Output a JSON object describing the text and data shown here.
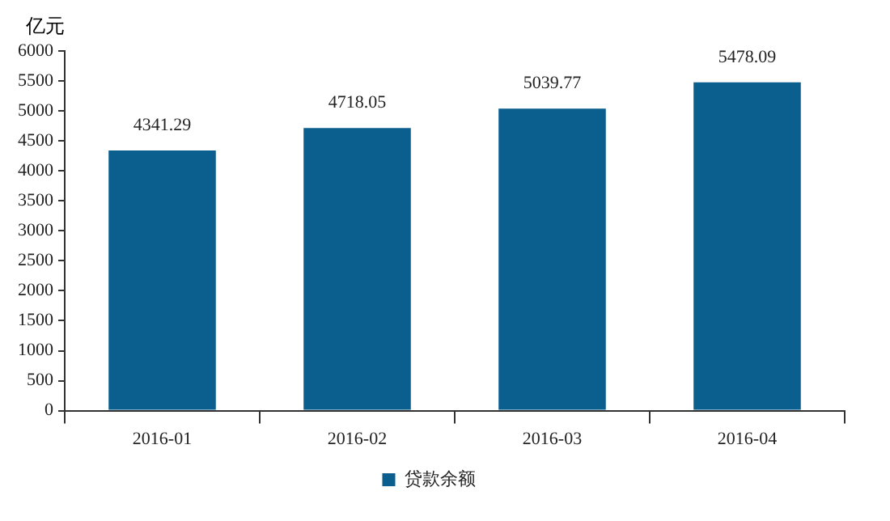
{
  "chart_data": {
    "type": "bar",
    "ylabel": "亿元",
    "categories": [
      "2016-01",
      "2016-02",
      "2016-03",
      "2016-04"
    ],
    "series": [
      {
        "name": "贷款余额",
        "color": "#0b5f8f",
        "values": [
          4341.29,
          4718.05,
          5039.77,
          5478.09
        ]
      }
    ],
    "ylim": [
      0,
      6000
    ],
    "yticks": [
      0,
      500,
      1000,
      1500,
      2000,
      2500,
      3000,
      3500,
      4000,
      4500,
      5000,
      5500,
      6000
    ],
    "data_labels": true,
    "legend": "bottom",
    "grid": false
  }
}
